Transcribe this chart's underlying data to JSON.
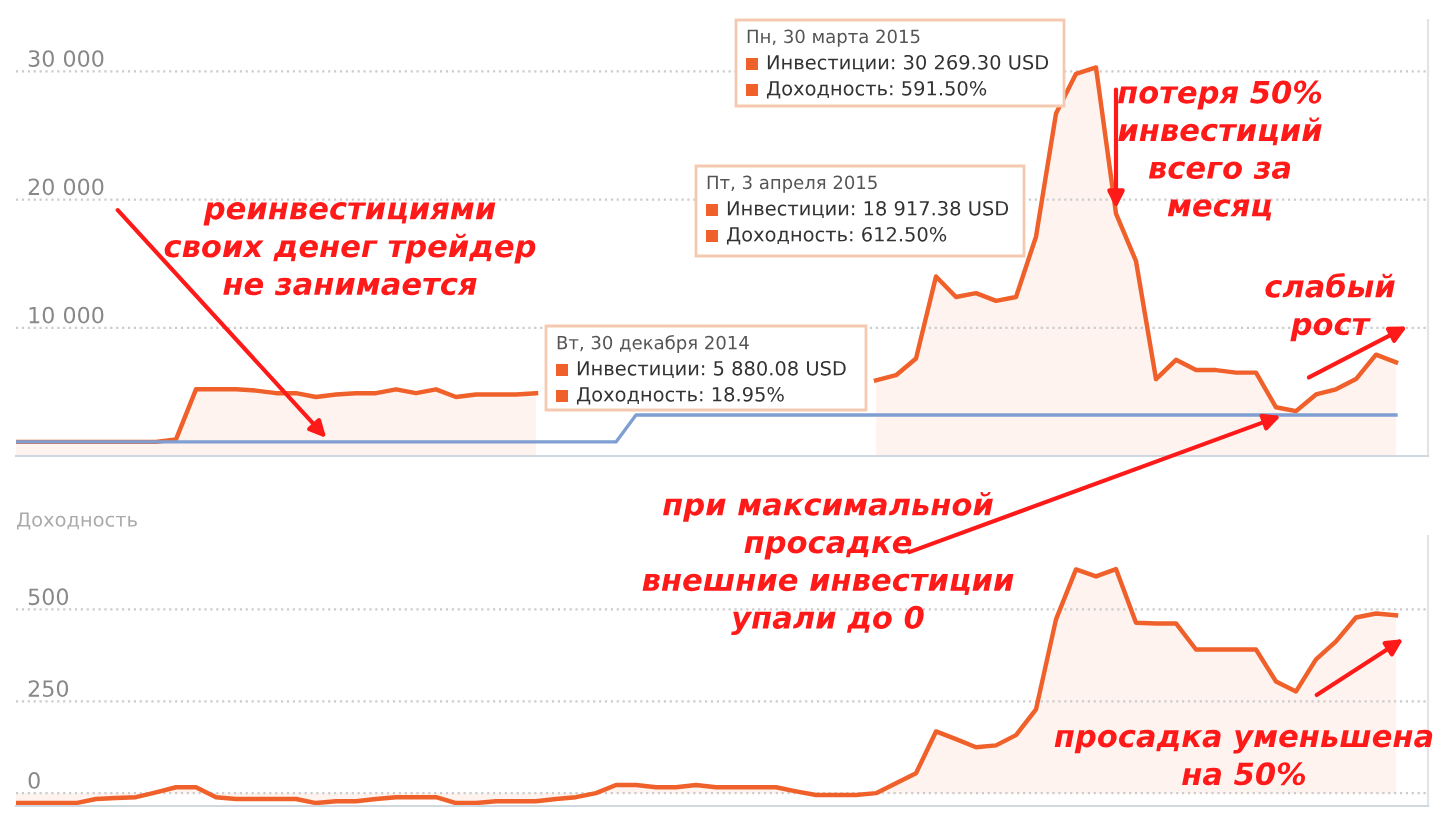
{
  "chart_data": [
    {
      "type": "area",
      "categories": [
        null,
        null,
        null,
        null,
        null,
        null,
        null,
        null,
        null,
        null,
        null,
        null,
        null,
        null,
        null,
        null,
        null,
        null,
        null,
        null,
        null,
        null,
        null,
        null,
        null,
        null,
        null,
        null,
        null,
        null,
        null,
        null,
        null,
        null,
        null,
        null,
        null,
        null,
        null,
        null,
        null,
        null,
        null,
        null,
        null,
        null,
        null,
        null,
        null,
        null,
        null,
        null,
        null,
        null,
        null,
        null,
        null,
        null,
        null,
        null,
        null,
        null,
        null,
        null,
        null,
        null,
        null,
        null,
        null,
        null
      ],
      "series": [
        {
          "color": "#f0602a",
          "values": [
            1100,
            1100,
            1100,
            1100,
            1100,
            1100,
            1100,
            1100,
            1300,
            5200,
            5200,
            5200,
            5100,
            4900,
            4900,
            4600,
            4800,
            4900,
            4900,
            5200,
            4900,
            5200,
            4600,
            4800,
            4800,
            4800,
            4900,
            null,
            null,
            null,
            null,
            null,
            null,
            null,
            null,
            null,
            null,
            null,
            null,
            null,
            null,
            null,
            null,
            5900,
            6300,
            7600,
            14000,
            12400,
            12700,
            12100,
            12400,
            17100,
            26700,
            29800,
            30300,
            18900,
            15200,
            6000,
            7500,
            6700,
            6700,
            6500,
            6500,
            3800,
            3500,
            4800,
            5200,
            6000,
            7900,
            7300
          ]
        },
        {
          "type": "line",
          "color": "#7f9fd3",
          "values": [
            1100,
            1100,
            1100,
            1100,
            1100,
            1100,
            1100,
            1100,
            1100,
            1100,
            1100,
            1100,
            1100,
            1100,
            1100,
            1100,
            1100,
            1100,
            1100,
            1100,
            1100,
            1100,
            1100,
            1100,
            1100,
            1100,
            1100,
            1100,
            1100,
            1100,
            1100,
            3200,
            3200,
            3200,
            3200,
            3200,
            3200,
            3200,
            3200,
            3200,
            3200,
            3200,
            3200,
            3200,
            3200,
            3200,
            3200,
            3200,
            3200,
            3200,
            3200,
            3200,
            3200,
            3200,
            3200,
            3200,
            3200,
            3200,
            3200,
            3200,
            3200,
            3200,
            3200,
            3200,
            3200,
            3200,
            3200,
            3200,
            3200,
            3200
          ]
        }
      ],
      "ylim": [
        0,
        34000
      ],
      "yticks": [
        {
          "value": 10000,
          "label": "10 000"
        },
        {
          "value": 20000,
          "label": "20 000"
        },
        {
          "value": 30000,
          "label": "30 000"
        }
      ],
      "grid": "y",
      "tick_labels": "y",
      "annotations": [
        "Вт, 30 декабря 2014\nИнвестиции: 5 880.08 USD\nДоходность: 18.95%",
        "Пн, 30 марта 2015\nИнвестиции: 30 269.30 USD\nДоходность: 591.50%",
        "Пт, 3 апреля 2015\nИнвестиции: 18 917.38 USD\nДоходность: 612.50%",
        "реинвестициями\nсвоих денег трейдер\nне занимается",
        "потеря 50%\nинвестиций\nвсего за\nмесяц",
        "слабый\nрост"
      ]
    },
    {
      "type": "area",
      "ylabel": "Доходность",
      "categories": [
        null,
        null,
        null,
        null,
        null,
        null,
        null,
        null,
        null,
        null,
        null,
        null,
        null,
        null,
        null,
        null,
        null,
        null,
        null,
        null,
        null,
        null,
        null,
        null,
        null,
        null,
        null,
        null,
        null,
        null,
        null,
        null,
        null,
        null,
        null,
        null,
        null,
        null,
        null,
        null,
        null,
        null,
        null,
        null,
        null,
        null,
        null,
        null,
        null,
        null,
        null,
        null,
        null,
        null,
        null,
        null,
        null,
        null,
        null,
        null,
        null,
        null,
        null,
        null,
        null,
        null,
        null,
        null,
        null,
        null
      ],
      "series": [
        {
          "color": "#f0602a",
          "values": [
            -27,
            -27,
            -27,
            -27,
            -16,
            -13,
            -11,
            2,
            16,
            16,
            -11,
            -16,
            -16,
            -16,
            -16,
            -27,
            -22,
            -22,
            -16,
            -11,
            -11,
            -11,
            -27,
            -27,
            -22,
            -22,
            -22,
            -16,
            -11,
            0,
            22,
            22,
            16,
            16,
            22,
            16,
            16,
            16,
            16,
            5,
            -5,
            -5,
            -5,
            0,
            27,
            54,
            168,
            147,
            125,
            130,
            158,
            228,
            473,
            609,
            590,
            610,
            464,
            462,
            462,
            391,
            391,
            391,
            391,
            304,
            277,
            364,
            413,
            478,
            489,
            484
          ]
        }
      ],
      "ylim": [
        -35,
        700
      ],
      "yticks": [
        0,
        250,
        500
      ],
      "grid": "y",
      "tick_labels": "y",
      "annotations": [
        "при максимальной\nпросадке\nвнешние инвестиции\nупали до 0",
        "просадка уменьшена\nна 50%"
      ]
    }
  ]
}
